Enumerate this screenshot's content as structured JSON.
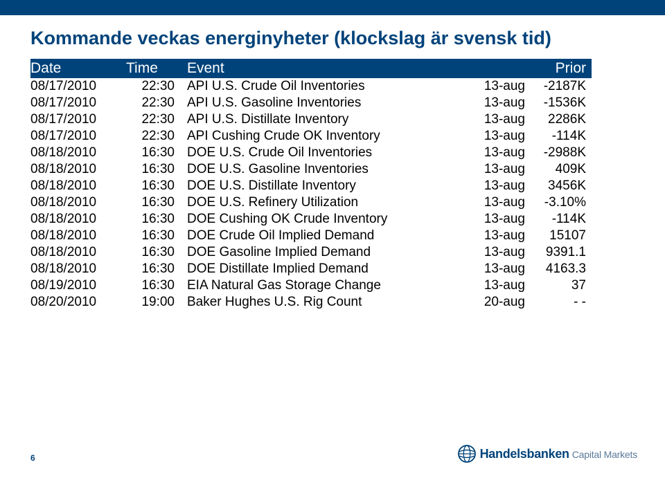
{
  "page": {
    "title": "Kommande veckas energinyheter (klockslag är svensk tid)",
    "page_number": "6",
    "logo_main": "Handelsbanken",
    "logo_sub": "Capital Markets"
  },
  "colors": {
    "brand_blue": "#00437a",
    "row_text": "#000000",
    "bg": "#ffffff"
  },
  "table": {
    "headers": {
      "date": "Date",
      "time": "Time",
      "event": "Event",
      "ref": "",
      "prior": "Prior"
    },
    "rows": [
      {
        "date": "08/17/2010",
        "time": "22:30",
        "event": "API U.S. Crude Oil Inventories",
        "ref": "13-aug",
        "prior": "-2187K"
      },
      {
        "date": "08/17/2010",
        "time": "22:30",
        "event": "API U.S. Gasoline Inventories",
        "ref": "13-aug",
        "prior": "-1536K"
      },
      {
        "date": "08/17/2010",
        "time": "22:30",
        "event": "API U.S. Distillate Inventory",
        "ref": "13-aug",
        "prior": "2286K"
      },
      {
        "date": "08/17/2010",
        "time": "22:30",
        "event": "API Cushing Crude OK Inventory",
        "ref": "13-aug",
        "prior": "-114K"
      },
      {
        "date": "08/18/2010",
        "time": "16:30",
        "event": "DOE U.S. Crude Oil Inventories",
        "ref": "13-aug",
        "prior": "-2988K"
      },
      {
        "date": "08/18/2010",
        "time": "16:30",
        "event": "DOE U.S. Gasoline Inventories",
        "ref": "13-aug",
        "prior": "409K"
      },
      {
        "date": "08/18/2010",
        "time": "16:30",
        "event": "DOE U.S. Distillate Inventory",
        "ref": "13-aug",
        "prior": "3456K"
      },
      {
        "date": "08/18/2010",
        "time": "16:30",
        "event": "DOE U.S. Refinery Utilization",
        "ref": "13-aug",
        "prior": "-3.10%"
      },
      {
        "date": "08/18/2010",
        "time": "16:30",
        "event": "DOE Cushing OK Crude Inventory",
        "ref": "13-aug",
        "prior": "-114K"
      },
      {
        "date": "08/18/2010",
        "time": "16:30",
        "event": "DOE Crude Oil Implied Demand",
        "ref": "13-aug",
        "prior": "15107"
      },
      {
        "date": "08/18/2010",
        "time": "16:30",
        "event": "DOE Gasoline Implied Demand",
        "ref": "13-aug",
        "prior": "9391.1"
      },
      {
        "date": "08/18/2010",
        "time": "16:30",
        "event": "DOE Distillate Implied Demand",
        "ref": "13-aug",
        "prior": "4163.3"
      },
      {
        "date": "08/19/2010",
        "time": "16:30",
        "event": "EIA Natural Gas Storage Change",
        "ref": "13-aug",
        "prior": "37"
      },
      {
        "date": "08/20/2010",
        "time": "19:00",
        "event": "Baker Hughes U.S. Rig Count",
        "ref": "20-aug",
        "prior": "- -"
      }
    ]
  }
}
